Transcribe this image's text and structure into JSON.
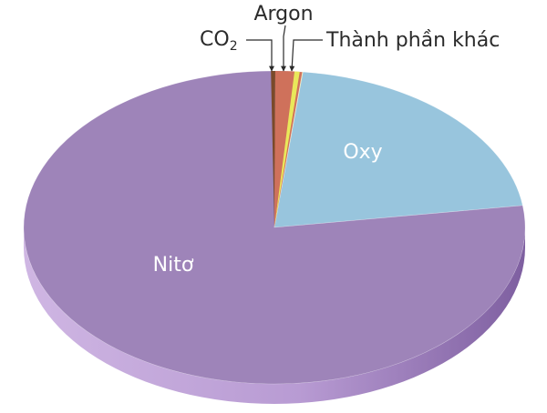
{
  "chart_data": {
    "type": "pie",
    "categories": [
      "Nitơ",
      "Oxy",
      "Argon",
      "CO2",
      "Thành phần khác"
    ],
    "values": [
      78.08,
      20.95,
      0.93,
      0.04,
      0.04
    ],
    "colors": [
      "#9e84b9",
      "#98c5dd",
      "#cf715b",
      "#7a4a2a",
      "#e9e85a"
    ],
    "labels": {
      "nito": "Nitơ",
      "oxy": "Oxy",
      "argon": "Argon",
      "co2_main": "CO",
      "co2_sub": "2",
      "other": "Thành phần khác"
    }
  }
}
